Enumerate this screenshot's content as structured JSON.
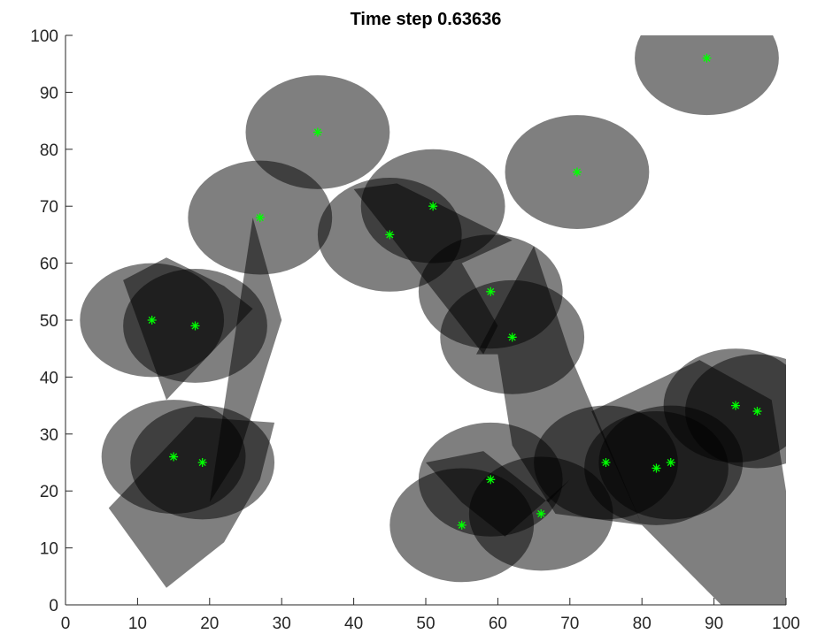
{
  "chart_data": {
    "type": "scatter",
    "title": "Time step 0.63636",
    "xlabel": "",
    "ylabel": "",
    "xlim": [
      0,
      100
    ],
    "ylim": [
      0,
      100
    ],
    "xticks": [
      0,
      10,
      20,
      30,
      40,
      50,
      60,
      70,
      80,
      90,
      100
    ],
    "yticks": [
      0,
      10,
      20,
      30,
      40,
      50,
      60,
      70,
      80,
      90,
      100
    ],
    "grid": false,
    "marker": "*",
    "colors": {
      "marker": "#00ff00",
      "region": "#000000",
      "region_alpha": 0.5,
      "axis": "#262626",
      "background": "#ffffff"
    },
    "points": [
      {
        "x": 89,
        "y": 96
      },
      {
        "x": 35,
        "y": 83
      },
      {
        "x": 71,
        "y": 76
      },
      {
        "x": 51,
        "y": 70
      },
      {
        "x": 27,
        "y": 68
      },
      {
        "x": 45,
        "y": 65
      },
      {
        "x": 59,
        "y": 55
      },
      {
        "x": 12,
        "y": 50
      },
      {
        "x": 18,
        "y": 49
      },
      {
        "x": 62,
        "y": 47
      },
      {
        "x": 93,
        "y": 35
      },
      {
        "x": 96,
        "y": 34
      },
      {
        "x": 15,
        "y": 26
      },
      {
        "x": 19,
        "y": 25
      },
      {
        "x": 75,
        "y": 25
      },
      {
        "x": 84,
        "y": 25
      },
      {
        "x": 82,
        "y": 24
      },
      {
        "x": 59,
        "y": 22
      },
      {
        "x": 66,
        "y": 16
      },
      {
        "x": 55,
        "y": 14
      }
    ],
    "circles": [
      {
        "cx": 89,
        "cy": 96,
        "r": 10
      },
      {
        "cx": 35,
        "cy": 83,
        "r": 10
      },
      {
        "cx": 71,
        "cy": 76,
        "r": 10
      },
      {
        "cx": 51,
        "cy": 70,
        "r": 10
      },
      {
        "cx": 27,
        "cy": 68,
        "r": 10
      },
      {
        "cx": 45,
        "cy": 65,
        "r": 10
      },
      {
        "cx": 59,
        "cy": 55,
        "r": 10
      },
      {
        "cx": 12,
        "cy": 50,
        "r": 10
      },
      {
        "cx": 18,
        "cy": 49,
        "r": 10
      },
      {
        "cx": 62,
        "cy": 47,
        "r": 10
      },
      {
        "cx": 93,
        "cy": 35,
        "r": 10
      },
      {
        "cx": 96,
        "cy": 34,
        "r": 10
      },
      {
        "cx": 15,
        "cy": 26,
        "r": 10
      },
      {
        "cx": 19,
        "cy": 25,
        "r": 10
      },
      {
        "cx": 75,
        "cy": 25,
        "r": 10
      },
      {
        "cx": 84,
        "cy": 25,
        "r": 10
      },
      {
        "cx": 82,
        "cy": 24,
        "r": 10
      },
      {
        "cx": 59,
        "cy": 22,
        "r": 10
      },
      {
        "cx": 66,
        "cy": 16,
        "r": 10
      },
      {
        "cx": 55,
        "cy": 14,
        "r": 10
      }
    ],
    "wedges": [
      {
        "points": [
          [
            26,
            68
          ],
          [
            30,
            50
          ],
          [
            26,
            34
          ],
          [
            24,
            26
          ],
          [
            20,
            18
          ]
        ]
      },
      {
        "points": [
          [
            8,
            57
          ],
          [
            14,
            61
          ],
          [
            22,
            56
          ],
          [
            26,
            52
          ],
          [
            14,
            36
          ]
        ]
      },
      {
        "points": [
          [
            40,
            73
          ],
          [
            46,
            74
          ],
          [
            62,
            64
          ],
          [
            55,
            60
          ],
          [
            60,
            49
          ],
          [
            58,
            44
          ]
        ]
      },
      {
        "points": [
          [
            57,
            44
          ],
          [
            65,
            63
          ],
          [
            70,
            44
          ],
          [
            80,
            14
          ],
          [
            68,
            16
          ],
          [
            62,
            28
          ],
          [
            60,
            44
          ]
        ]
      },
      {
        "points": [
          [
            73,
            34
          ],
          [
            88,
            43
          ],
          [
            98,
            36
          ],
          [
            100,
            20
          ],
          [
            100,
            0
          ],
          [
            91,
            0
          ],
          [
            80,
            14
          ]
        ]
      },
      {
        "points": [
          [
            18,
            33
          ],
          [
            29,
            32
          ],
          [
            27,
            22
          ],
          [
            22,
            11
          ],
          [
            14,
            3
          ],
          [
            6,
            17
          ]
        ]
      },
      {
        "points": [
          [
            50,
            25
          ],
          [
            58,
            27
          ],
          [
            67,
            18
          ],
          [
            70,
            22
          ],
          [
            61,
            12
          ],
          [
            55,
            18
          ]
        ]
      }
    ]
  }
}
